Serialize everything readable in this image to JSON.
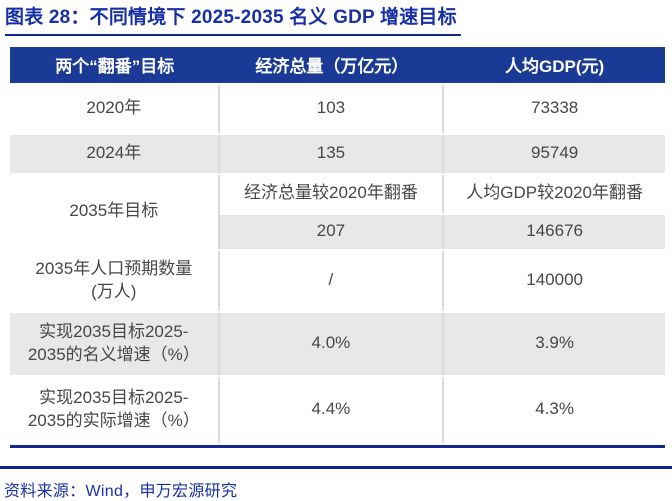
{
  "page": {
    "title": "图表 28：不同情境下 2025-2035 名义 GDP 增速目标",
    "source_note": "资料来源：Wind，申万宏源研究"
  },
  "colors": {
    "title_blue": "#1830A6",
    "header_bg": "#1A3A96",
    "rule_navy": "#10288F",
    "row_gray": "#E8E8E8",
    "body_text": "#474747",
    "col_sep": "#D9D9D9"
  },
  "table": {
    "headers": [
      "两个“翻番”目标",
      "经济总量（万亿元）",
      "人均GDP(元)"
    ],
    "rows": [
      {
        "cells": [
          "2020年",
          "103",
          "73338"
        ]
      },
      {
        "cells": [
          "2024年",
          "135",
          "95749"
        ]
      },
      {
        "cells": [
          "2035年目标",
          "经济总量较2020年翻番",
          "人均GDP较2020年翻番"
        ]
      },
      {
        "cells": [
          "207",
          "146676"
        ]
      },
      {
        "cells": [
          "2035年人口预期数量\n(万人)",
          "/",
          "140000"
        ]
      },
      {
        "cells": [
          "实现2035目标2025-\n2035的名义增速（%）",
          "4.0%",
          "3.9%"
        ]
      },
      {
        "cells": [
          "实现2035目标2025-\n2035的实际增速（%）",
          "4.4%",
          "4.3%"
        ]
      }
    ]
  }
}
